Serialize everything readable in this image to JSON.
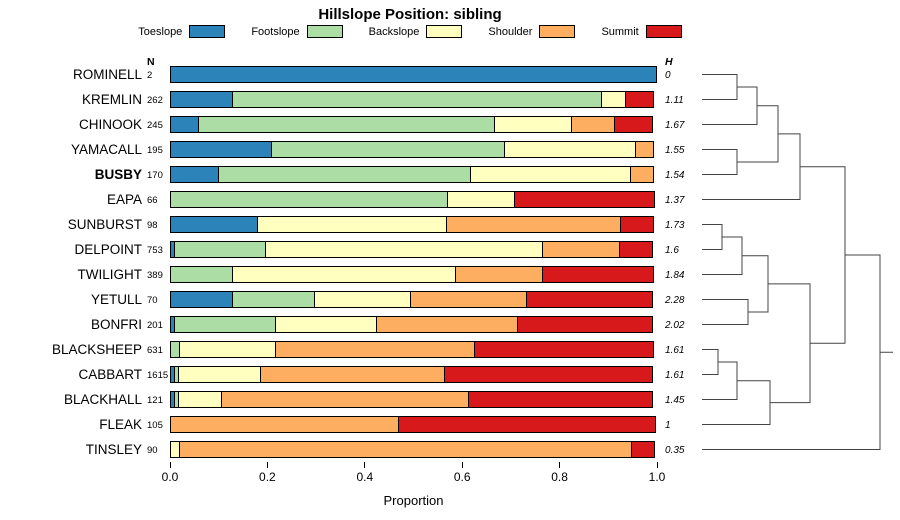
{
  "chart_data": {
    "type": "bar",
    "variant": "horizontal-stacked-proportion",
    "title": "Hillslope Position: sibling",
    "xlabel": "Proportion",
    "xlim": [
      0,
      1
    ],
    "x_ticks": [
      "0.0",
      "0.2",
      "0.4",
      "0.6",
      "0.8",
      "1.0"
    ],
    "x_tick_values": [
      0.0,
      0.2,
      0.4,
      0.6,
      0.8,
      1.0
    ],
    "grid": false,
    "legend_position": "top",
    "columns": {
      "n_header": "N",
      "h_header": "H"
    },
    "series_names": [
      "Toeslope",
      "Footslope",
      "Backslope",
      "Shoulder",
      "Summit"
    ],
    "colors": {
      "toeslope": "#2B83BA",
      "footslope": "#ABDDA4",
      "backslope": "#FFFFBF",
      "shoulder": "#FDAE61",
      "summit": "#D7191C"
    },
    "legend": [
      {
        "label": "Toeslope",
        "color": "#2B83BA"
      },
      {
        "label": "Footslope",
        "color": "#ABDDA4"
      },
      {
        "label": "Backslope",
        "color": "#FFFFBF"
      },
      {
        "label": "Shoulder",
        "color": "#FDAE61"
      },
      {
        "label": "Summit",
        "color": "#D7191C"
      }
    ],
    "rows": [
      {
        "name": "ROMINELL",
        "n": "2",
        "h": "0",
        "bold": false,
        "values": [
          1.0,
          0.0,
          0.0,
          0.0,
          0.0
        ]
      },
      {
        "name": "KREMLIN",
        "n": "262",
        "h": "1.11",
        "bold": false,
        "values": [
          0.13,
          0.76,
          0.05,
          0.0,
          0.06
        ]
      },
      {
        "name": "CHINOOK",
        "n": "245",
        "h": "1.67",
        "bold": false,
        "values": [
          0.06,
          0.61,
          0.16,
          0.09,
          0.08
        ]
      },
      {
        "name": "YAMACALL",
        "n": "195",
        "h": "1.55",
        "bold": false,
        "values": [
          0.21,
          0.48,
          0.27,
          0.04,
          0.0
        ]
      },
      {
        "name": "BUSBY",
        "n": "170",
        "h": "1.54",
        "bold": true,
        "values": [
          0.1,
          0.52,
          0.33,
          0.05,
          0.0
        ]
      },
      {
        "name": "EAPA",
        "n": "66",
        "h": "1.37",
        "bold": false,
        "values": [
          0.0,
          0.57,
          0.14,
          0.0,
          0.29
        ]
      },
      {
        "name": "SUNBURST",
        "n": "98",
        "h": "1.73",
        "bold": false,
        "values": [
          0.18,
          0.0,
          0.39,
          0.36,
          0.07
        ]
      },
      {
        "name": "DELPOINT",
        "n": "753",
        "h": "1.6",
        "bold": false,
        "values": [
          0.01,
          0.19,
          0.57,
          0.16,
          0.07
        ]
      },
      {
        "name": "TWILIGHT",
        "n": "389",
        "h": "1.84",
        "bold": false,
        "values": [
          0.0,
          0.13,
          0.46,
          0.18,
          0.23
        ]
      },
      {
        "name": "YETULL",
        "n": "70",
        "h": "2.28",
        "bold": false,
        "values": [
          0.13,
          0.17,
          0.2,
          0.24,
          0.26
        ]
      },
      {
        "name": "BONFRI",
        "n": "201",
        "h": "2.02",
        "bold": false,
        "values": [
          0.01,
          0.21,
          0.21,
          0.29,
          0.28
        ]
      },
      {
        "name": "BLACKSHEEP",
        "n": "631",
        "h": "1.61",
        "bold": false,
        "values": [
          0.0,
          0.02,
          0.2,
          0.41,
          0.37
        ]
      },
      {
        "name": "CABBART",
        "n": "1615",
        "h": "1.61",
        "bold": false,
        "values": [
          0.01,
          0.01,
          0.17,
          0.38,
          0.43
        ]
      },
      {
        "name": "BLACKHALL",
        "n": "121",
        "h": "1.45",
        "bold": false,
        "values": [
          0.01,
          0.01,
          0.09,
          0.51,
          0.38
        ]
      },
      {
        "name": "FLEAK",
        "n": "105",
        "h": "1",
        "bold": false,
        "values": [
          0.0,
          0.0,
          0.0,
          0.47,
          0.53
        ]
      },
      {
        "name": "TINSLEY",
        "n": "90",
        "h": "0.35",
        "bold": false,
        "values": [
          0.0,
          0.0,
          0.02,
          0.93,
          0.05
        ]
      }
    ],
    "dendrogram": {
      "note": "hierarchical clustering of series shown at right, root at far right",
      "leaf_order": [
        "ROMINELL",
        "KREMLIN",
        "CHINOOK",
        "YAMACALL",
        "BUSBY",
        "EAPA",
        "SUNBURST",
        "DELPOINT",
        "TWILIGHT",
        "YETULL",
        "BONFRI",
        "BLACKSHEEP",
        "CABBART",
        "BLACKHALL",
        "FLEAK",
        "TINSLEY"
      ],
      "merges": [
        {
          "a": "L0",
          "b": "L1",
          "d": 737
        },
        {
          "a": "M0",
          "b": "L2",
          "d": 757
        },
        {
          "a": "L3",
          "b": "L4",
          "d": 737
        },
        {
          "a": "M1",
          "b": "M2",
          "d": 778
        },
        {
          "a": "M3",
          "b": "L5",
          "d": 800
        },
        {
          "a": "L6",
          "b": "L7",
          "d": 722
        },
        {
          "a": "M5",
          "b": "L8",
          "d": 742
        },
        {
          "a": "L9",
          "b": "L10",
          "d": 748
        },
        {
          "a": "M6",
          "b": "M7",
          "d": 768
        },
        {
          "a": "L11",
          "b": "L12",
          "d": 718
        },
        {
          "a": "M9",
          "b": "L13",
          "d": 737
        },
        {
          "a": "M10",
          "b": "L14",
          "d": 770
        },
        {
          "a": "M8",
          "b": "M11",
          "d": 810
        },
        {
          "a": "M4",
          "b": "M12",
          "d": 845
        },
        {
          "a": "M13",
          "b": "L15",
          "d": 880
        }
      ]
    }
  }
}
